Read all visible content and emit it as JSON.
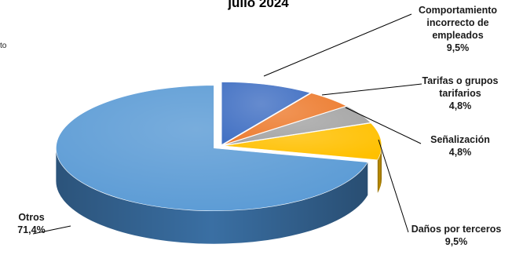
{
  "chart_data": {
    "type": "pie",
    "title": "julio 2024",
    "left_fragment": "to",
    "legend": "none",
    "slices": [
      {
        "label_lines": [
          "Comportamiento",
          "incorrecto de",
          "empleados"
        ],
        "value_label": "9,5%",
        "value": 9.5,
        "color": "#4472C4",
        "dark": "#2F5597"
      },
      {
        "label_lines": [
          "Tarifas o grupos",
          "tarifarios"
        ],
        "value_label": "4,8%",
        "value": 4.8,
        "color": "#ED7D31",
        "dark": "#B45A1F"
      },
      {
        "label_lines": [
          "Señalización"
        ],
        "value_label": "4,8%",
        "value": 4.8,
        "color": "#A5A5A5",
        "dark": "#7B7B7B"
      },
      {
        "label_lines": [
          "Daños por terceros"
        ],
        "value_label": "9,5%",
        "value": 9.5,
        "color": "#FFC000",
        "dark": "#BF8F00"
      },
      {
        "label_lines": [
          "Otros"
        ],
        "value_label": "71,4%",
        "value": 71.4,
        "color": "#5B9BD5",
        "dark": "#3A6FA3"
      }
    ]
  }
}
